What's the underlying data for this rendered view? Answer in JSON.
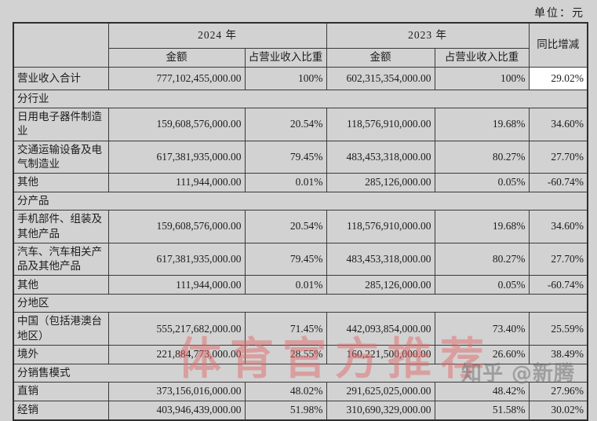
{
  "unit_label": "单位：元",
  "table": {
    "header": {
      "year_2024": "2024 年",
      "year_2023": "2023 年",
      "yoy": "同比增减",
      "amount_2024": "金额",
      "share_2024": "占营业收入比重",
      "amount_2023": "金额",
      "share_2023": "占营业收入比重"
    },
    "rows": [
      {
        "type": "data",
        "variant": "total",
        "label": "营业收入合计",
        "amount_2024": "777,102,455,000.00",
        "share_2024": "100%",
        "amount_2023": "602,315,354,000.00",
        "share_2023": "100%",
        "yoy": "29.02%"
      },
      {
        "type": "section",
        "label": "分行业"
      },
      {
        "type": "data",
        "label": "日用电子器件制造业",
        "amount_2024": "159,608,576,000.00",
        "share_2024": "20.54%",
        "amount_2023": "118,576,910,000.00",
        "share_2023": "19.68%",
        "yoy": "34.60%"
      },
      {
        "type": "data",
        "label": "交通运输设备及电气制造业",
        "amount_2024": "617,381,935,000.00",
        "share_2024": "79.45%",
        "amount_2023": "483,453,318,000.00",
        "share_2023": "80.27%",
        "yoy": "27.70%"
      },
      {
        "type": "data",
        "label": "其他",
        "amount_2024": "111,944,000.00",
        "share_2024": "0.01%",
        "amount_2023": "285,126,000.00",
        "share_2023": "0.05%",
        "yoy": "-60.74%"
      },
      {
        "type": "section",
        "label": "分产品"
      },
      {
        "type": "data",
        "label": "手机部件、组装及其他产品",
        "amount_2024": "159,608,576,000.00",
        "share_2024": "20.54%",
        "amount_2023": "118,576,910,000.00",
        "share_2023": "19.68%",
        "yoy": "34.60%"
      },
      {
        "type": "data",
        "label": "汽车、汽车相关产品及其他产品",
        "amount_2024": "617,381,935,000.00",
        "share_2024": "79.45%",
        "amount_2023": "483,453,318,000.00",
        "share_2023": "80.27%",
        "yoy": "27.70%"
      },
      {
        "type": "data",
        "label": "其他",
        "amount_2024": "111,944,000.00",
        "share_2024": "0.01%",
        "amount_2023": "285,126,000.00",
        "share_2023": "0.05%",
        "yoy": "-60.74%"
      },
      {
        "type": "section",
        "label": "分地区"
      },
      {
        "type": "data",
        "label": "中国（包括港澳台地区）",
        "amount_2024": "555,217,682,000.00",
        "share_2024": "71.45%",
        "amount_2023": "442,093,854,000.00",
        "share_2023": "73.40%",
        "yoy": "25.59%"
      },
      {
        "type": "data",
        "label": "境外",
        "amount_2024": "221,884,773,000.00",
        "share_2024": "28.55%",
        "amount_2023": "160,221,500,000.00",
        "share_2023": "26.60%",
        "yoy": "38.49%"
      },
      {
        "type": "section",
        "label": "分销售模式"
      },
      {
        "type": "data",
        "label": "直销",
        "amount_2024": "373,156,016,000.00",
        "share_2024": "48.02%",
        "amount_2023": "291,625,025,000.00",
        "share_2023": "48.42%",
        "yoy": "27.96%"
      },
      {
        "type": "data",
        "label": "经销",
        "amount_2024": "403,946,439,000.00",
        "share_2024": "51.98%",
        "amount_2023": "310,690,329,000.00",
        "share_2023": "51.58%",
        "yoy": "30.02%"
      }
    ]
  },
  "watermarks": {
    "center_text": "体育官方推荐",
    "center_color": "rgba(225,106,106,0.5)",
    "corner_text": "知乎 @新腾",
    "corner_color": "rgba(115,115,115,0.55)"
  }
}
